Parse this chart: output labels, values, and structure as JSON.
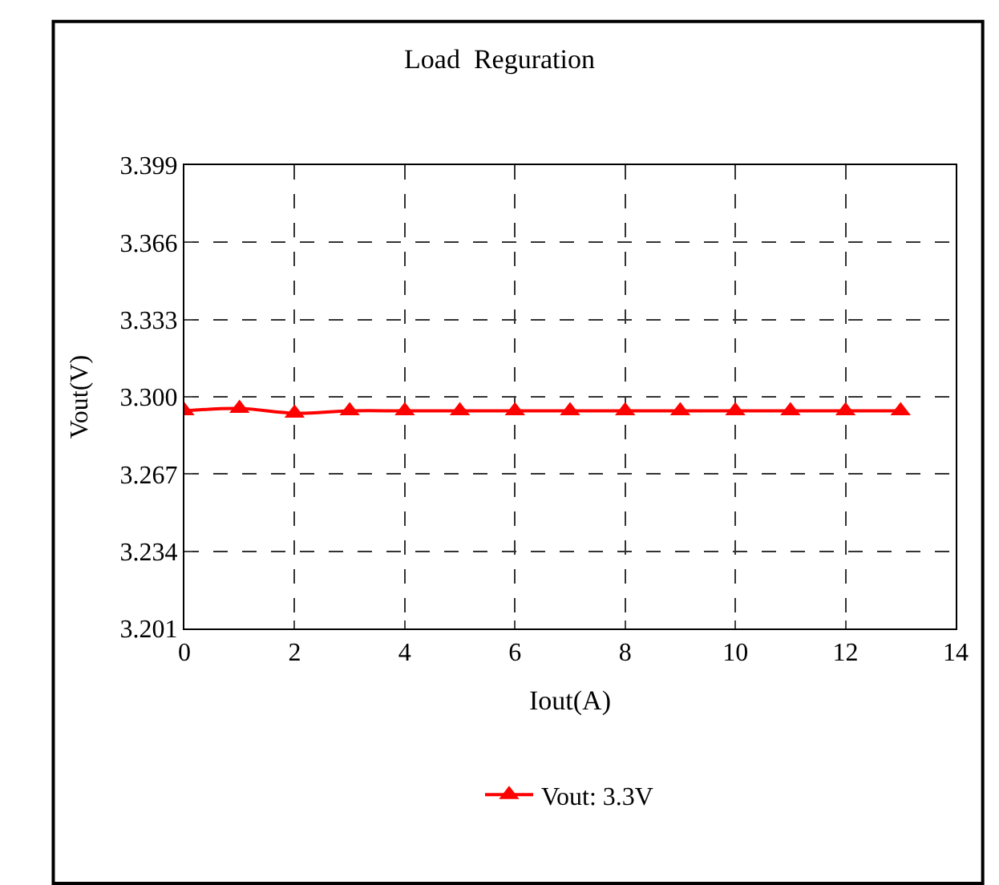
{
  "chart_data": {
    "type": "line",
    "title": "Load  Reguration",
    "xlabel": "Iout(A)",
    "ylabel": "Vout(V)",
    "x": [
      0,
      1,
      2,
      3,
      4,
      5,
      6,
      7,
      8,
      9,
      10,
      11,
      12,
      13
    ],
    "series": [
      {
        "name": "Vout: 3.3V",
        "color": "#ff0000",
        "values": [
          3.294,
          3.295,
          3.293,
          3.294,
          3.294,
          3.294,
          3.294,
          3.294,
          3.294,
          3.294,
          3.294,
          3.294,
          3.294,
          3.294
        ]
      }
    ],
    "xlim": [
      0,
      14
    ],
    "xticks": [
      0,
      2,
      4,
      6,
      8,
      10,
      12,
      14
    ],
    "ylim": [
      3.201,
      3.399
    ],
    "yticks": [
      3.201,
      3.234,
      3.267,
      {
        "value": 3.3,
        "label": "3.300"
      },
      3.333,
      3.366,
      3.399
    ],
    "grid": true,
    "legend": "bottom",
    "marker": "triangle",
    "line_style": "solid"
  }
}
